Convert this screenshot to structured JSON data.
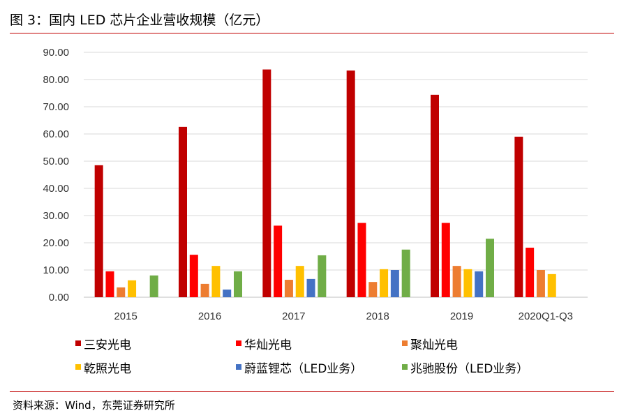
{
  "title": "图 3：国内 LED 芯片企业营收规模（亿元）",
  "source": "资料来源：Wind，东莞证券研究所",
  "chart_data": {
    "type": "bar",
    "title": "",
    "xlabel": "",
    "ylabel": "",
    "ylim": [
      0,
      90
    ],
    "yticks": [
      "0.00",
      "10.00",
      "20.00",
      "30.00",
      "40.00",
      "50.00",
      "60.00",
      "70.00",
      "80.00",
      "90.00"
    ],
    "grid": true,
    "legend_position": "bottom",
    "categories": [
      "2015",
      "2016",
      "2017",
      "2018",
      "2019",
      "2020Q1-Q3"
    ],
    "series": [
      {
        "name": "三安光电",
        "color": "#c00000",
        "values": [
          48.5,
          62.6,
          83.7,
          83.3,
          74.4,
          59.0
        ]
      },
      {
        "name": "华灿光电",
        "color": "#ff0000",
        "values": [
          9.5,
          15.6,
          26.3,
          27.3,
          27.3,
          18.2
        ]
      },
      {
        "name": "聚灿光电",
        "color": "#ed7d31",
        "values": [
          3.6,
          4.9,
          6.4,
          5.6,
          11.5,
          10.0
        ]
      },
      {
        "name": "乾照光电",
        "color": "#ffc000",
        "values": [
          6.2,
          11.5,
          11.5,
          10.3,
          10.3,
          8.5
        ]
      },
      {
        "name": "蔚蓝锂芯（LED业务）",
        "color": "#4472c4",
        "values": [
          null,
          2.8,
          6.7,
          10.0,
          9.5,
          null
        ]
      },
      {
        "name": "兆驰股份（LED业务）",
        "color": "#70ad47",
        "values": [
          8.0,
          9.5,
          15.4,
          17.5,
          21.5,
          null
        ]
      }
    ]
  }
}
